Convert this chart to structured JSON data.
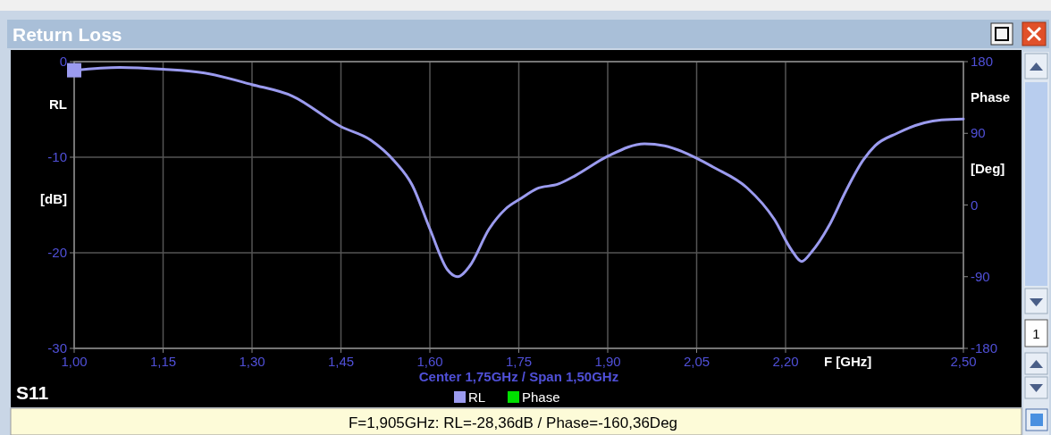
{
  "chart_data": {
    "type": "line",
    "title": "Return Loss",
    "xlabel": "F [GHz]",
    "ylabel": "RL [dB]",
    "y2label": "Phase [Deg]",
    "x": [
      1.0,
      1.077,
      1.15,
      1.22,
      1.3,
      1.368,
      1.45,
      1.5,
      1.54,
      1.57,
      1.6,
      1.63,
      1.647,
      1.667,
      1.7,
      1.728,
      1.754,
      1.78,
      1.817,
      1.846,
      1.9,
      1.962,
      1.996,
      2.05,
      2.077,
      2.135,
      2.181,
      2.21,
      2.227,
      2.244,
      2.273,
      2.302,
      2.331,
      2.351,
      2.388,
      2.434,
      2.463,
      2.5
    ],
    "series": [
      {
        "name": "RL",
        "color": "#9b9bef",
        "values": [
          -0.9,
          -0.6,
          -0.8,
          -1.2,
          -2.4,
          -3.6,
          -6.8,
          -8.2,
          -10.4,
          -12.9,
          -17.5,
          -21.8,
          -22.5,
          -21.4,
          -17.5,
          -15.4,
          -14.3,
          -13.3,
          -12.8,
          -11.9,
          -9.9,
          -8.6,
          -8.8,
          -10.1,
          -11.0,
          -13.2,
          -16.5,
          -19.7,
          -20.9,
          -19.9,
          -17.2,
          -13.5,
          -10.3,
          -8.8,
          -7.5,
          -6.4,
          -6.1,
          -6.0
        ]
      },
      {
        "name": "Phase",
        "color": "#00e000",
        "values": [
          null,
          null,
          null,
          null,
          null,
          null,
          null,
          null,
          null,
          null,
          null,
          null,
          null,
          null,
          null,
          null,
          null,
          null,
          null,
          null,
          null,
          null,
          null,
          null,
          null,
          null,
          null,
          null,
          null,
          null,
          null,
          null,
          null,
          null,
          null,
          null,
          null,
          null
        ]
      }
    ],
    "xlim": [
      1.0,
      2.5
    ],
    "xticks": [
      {
        "value": 1.0,
        "label": "1,00"
      },
      {
        "value": 1.15,
        "label": "1,15"
      },
      {
        "value": 1.3,
        "label": "1,30"
      },
      {
        "value": 1.45,
        "label": "1,45"
      },
      {
        "value": 1.6,
        "label": "1,60"
      },
      {
        "value": 1.75,
        "label": "1,75"
      },
      {
        "value": 1.9,
        "label": "1,90"
      },
      {
        "value": 2.05,
        "label": "2,05"
      },
      {
        "value": 2.2,
        "label": "2,20"
      },
      {
        "value": 2.5,
        "label": "2,50"
      }
    ],
    "ylim": [
      -30,
      0
    ],
    "yticks": [
      0,
      -10,
      -20,
      -30
    ],
    "y2lim": [
      -180,
      180
    ],
    "y2ticks": [
      180,
      90,
      0,
      -90,
      -180
    ],
    "grid": true,
    "legend": "bottom",
    "marker": "none",
    "line_style": "solid",
    "annotations": [
      "Center 1,75GHz / Span 1,50GHz",
      "S11",
      "F=1,905GHz: RL=-28,36dB / Phase=-160,36Deg",
      "1"
    ]
  }
}
